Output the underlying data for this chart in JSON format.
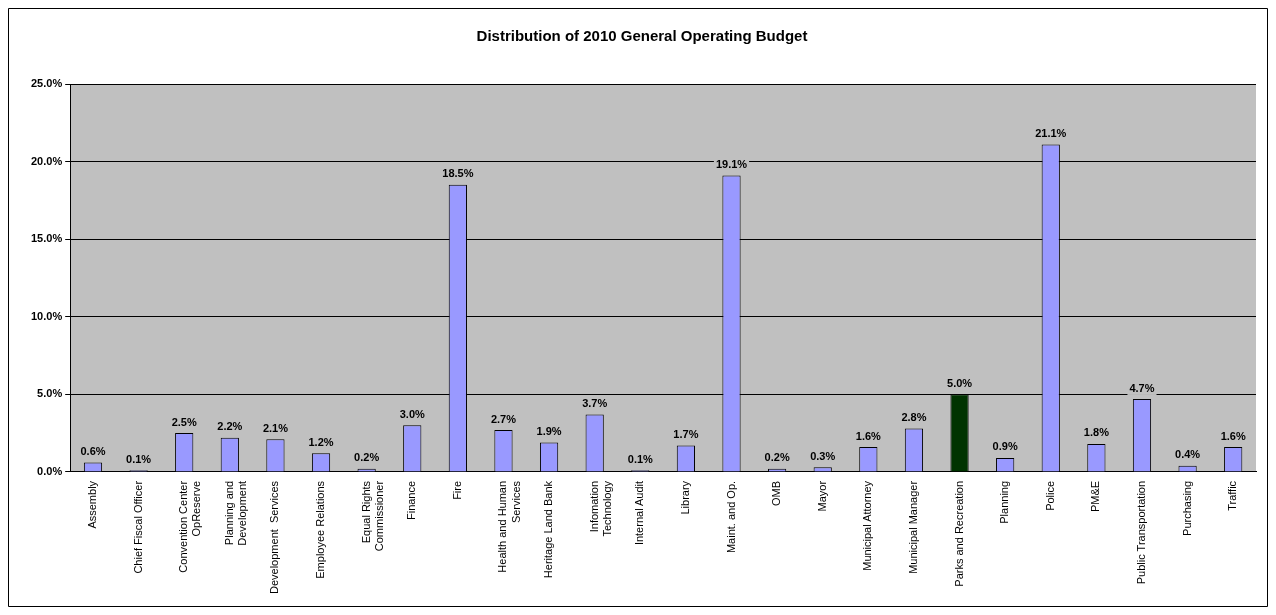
{
  "chart_data": {
    "type": "bar",
    "title": "Distribution of 2010 General Operating Budget",
    "categories": [
      "Assembly",
      "Chief Fiscal Officer",
      "Convention Center\nOpReserve",
      "Planning and\nDevelopment",
      "Development  Services",
      "Employee Relations",
      "Equal Rights\nCommissioner",
      "Finance",
      "Fire",
      "Health and Human\nServices",
      "Heritage Land Bank",
      "Infomation\nTechnology",
      "Internal Audit",
      "Library",
      "Maint. and Op.",
      "OMB",
      "Mayor",
      "Municipal Attorney",
      "Municipal Manager",
      "Parks and Recreation",
      "Planning",
      "Police",
      "PM&E",
      "Public Transportation",
      "Purchasing",
      "Traffic"
    ],
    "values": [
      0.6,
      0.1,
      2.5,
      2.2,
      2.1,
      1.2,
      0.2,
      3.0,
      18.5,
      2.7,
      1.9,
      3.7,
      0.1,
      1.7,
      19.1,
      0.2,
      0.3,
      1.6,
      2.8,
      5.0,
      0.9,
      21.1,
      1.8,
      4.7,
      0.4,
      1.6
    ],
    "value_labels": [
      "0.6%",
      "0.1%",
      "2.5%",
      "2.2%",
      "2.1%",
      "1.2%",
      "0.2%",
      "3.0%",
      "18.5%",
      "2.7%",
      "1.9%",
      "3.7%",
      "0.1%",
      "1.7%",
      "19.1%",
      "0.2%",
      "0.3%",
      "1.6%",
      "2.8%",
      "5.0%",
      "0.9%",
      "21.1%",
      "1.8%",
      "4.7%",
      "0.4%",
      "1.6%"
    ],
    "colors": [
      "#9999ff",
      "#9999ff",
      "#9999ff",
      "#9999ff",
      "#9999ff",
      "#9999ff",
      "#9999ff",
      "#9999ff",
      "#9999ff",
      "#9999ff",
      "#9999ff",
      "#9999ff",
      "#9999ff",
      "#9999ff",
      "#9999ff",
      "#9999ff",
      "#9999ff",
      "#9999ff",
      "#9999ff",
      "#003300",
      "#9999ff",
      "#9999ff",
      "#9999ff",
      "#9999ff",
      "#9999ff",
      "#9999ff"
    ],
    "ylim": [
      0,
      25
    ],
    "yticks": [
      {
        "value": 0,
        "label": "0.0%"
      },
      {
        "value": 5,
        "label": "5.0%"
      },
      {
        "value": 10,
        "label": "10.0%"
      },
      {
        "value": 15,
        "label": "15.0%"
      },
      {
        "value": 20,
        "label": "20.0%"
      },
      {
        "value": 25,
        "label": "25.0%"
      }
    ],
    "grid": "y",
    "legend": false
  }
}
